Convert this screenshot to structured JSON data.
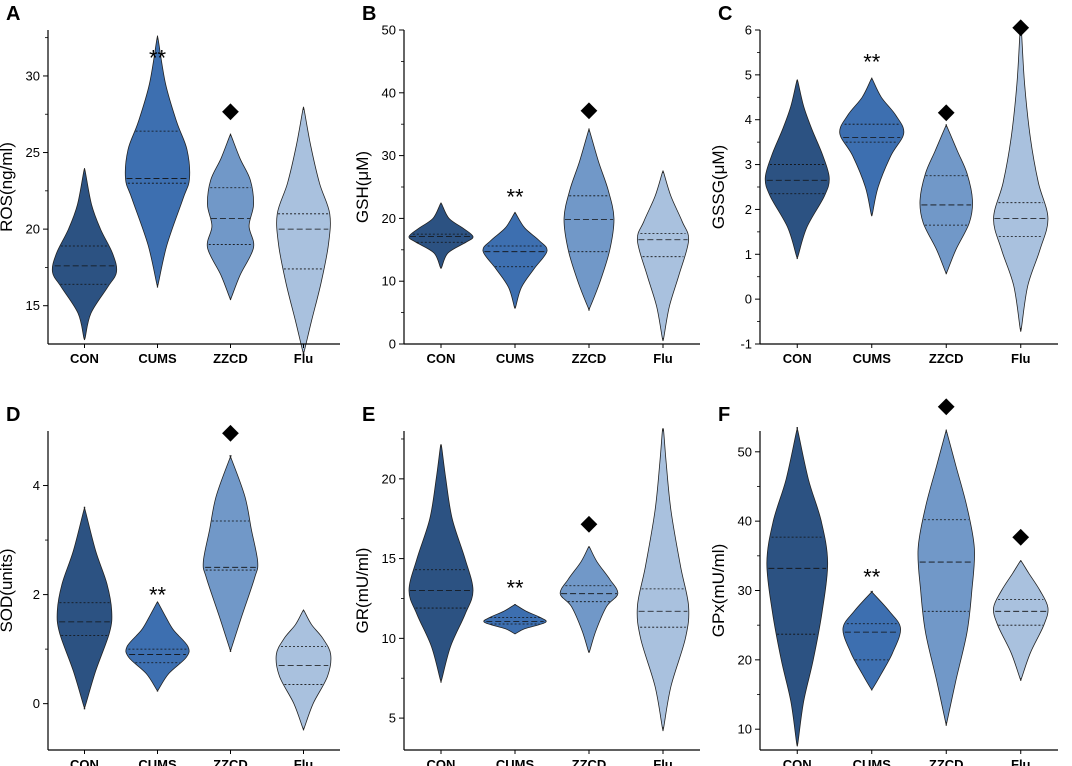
{
  "colors": {
    "groups": [
      "#2c5282",
      "#3d6fb0",
      "#7198c8",
      "#a9c1de"
    ],
    "stroke": "#222222"
  },
  "chart_data": [
    {
      "id": "A",
      "panel_label": "A",
      "type": "violin",
      "ylabel": "ROS(ng/ml)",
      "ylim": [
        12.5,
        33
      ],
      "yticks": [
        15,
        20,
        25,
        30
      ],
      "categories": [
        "CON",
        "CUMS",
        "ZZCD",
        "Flu"
      ],
      "violins": [
        {
          "min": 12.9,
          "max": 23.8,
          "q1": 16.4,
          "median": 17.6,
          "q3": 18.9,
          "profile": [
            [
              12.9,
              0.02
            ],
            [
              14.5,
              0.2
            ],
            [
              16.2,
              0.72
            ],
            [
              17.2,
              1.0
            ],
            [
              18.4,
              0.88
            ],
            [
              20.0,
              0.5
            ],
            [
              21.6,
              0.22
            ],
            [
              23.8,
              0.02
            ]
          ]
        },
        {
          "min": 16.4,
          "max": 32.4,
          "q1": 23.0,
          "median": 23.3,
          "q3": 26.4,
          "profile": [
            [
              16.4,
              0.02
            ],
            [
              19.0,
              0.3
            ],
            [
              22.0,
              0.8
            ],
            [
              23.3,
              1.0
            ],
            [
              25.2,
              0.92
            ],
            [
              27.0,
              0.6
            ],
            [
              29.5,
              0.25
            ],
            [
              32.4,
              0.02
            ]
          ]
        },
        {
          "min": 15.5,
          "max": 26.1,
          "q1": 19.0,
          "median": 20.7,
          "q3": 22.7,
          "profile": [
            [
              15.5,
              0.02
            ],
            [
              17.0,
              0.3
            ],
            [
              18.8,
              0.72
            ],
            [
              20.2,
              0.58
            ],
            [
              21.6,
              0.72
            ],
            [
              23.2,
              0.62
            ],
            [
              24.6,
              0.3
            ],
            [
              26.1,
              0.02
            ]
          ]
        },
        {
          "min": 12.0,
          "max": 27.8,
          "q1": 17.4,
          "median": 20.0,
          "q3": 21.0,
          "profile": [
            [
              12.0,
              0.02
            ],
            [
              14.0,
              0.25
            ],
            [
              16.5,
              0.55
            ],
            [
              19.0,
              0.78
            ],
            [
              21.0,
              0.82
            ],
            [
              23.0,
              0.5
            ],
            [
              25.5,
              0.22
            ],
            [
              27.8,
              0.02
            ]
          ]
        }
      ],
      "annotations": [
        {
          "group": "CUMS",
          "label": "**",
          "y": 31.2
        },
        {
          "group": "ZZCD",
          "label": "◆",
          "y": 27.8
        }
      ]
    },
    {
      "id": "B",
      "panel_label": "B",
      "type": "violin",
      "ylabel": "GSH(μM)",
      "ylim": [
        0,
        50
      ],
      "yticks": [
        0,
        10,
        20,
        30,
        40,
        50
      ],
      "categories": [
        "CON",
        "CUMS",
        "ZZCD",
        "Flu"
      ],
      "violins": [
        {
          "min": 12.2,
          "max": 22.3,
          "q1": 16.2,
          "median": 17.1,
          "q3": 17.5,
          "profile": [
            [
              12.2,
              0.02
            ],
            [
              14.5,
              0.22
            ],
            [
              16.2,
              0.78
            ],
            [
              17.1,
              1.0
            ],
            [
              18.4,
              0.7
            ],
            [
              20.0,
              0.25
            ],
            [
              22.3,
              0.02
            ]
          ]
        },
        {
          "min": 5.9,
          "max": 20.8,
          "q1": 12.3,
          "median": 14.7,
          "q3": 15.6,
          "profile": [
            [
              5.9,
              0.02
            ],
            [
              9.0,
              0.2
            ],
            [
              12.0,
              0.6
            ],
            [
              14.8,
              1.0
            ],
            [
              16.5,
              0.75
            ],
            [
              18.5,
              0.3
            ],
            [
              20.8,
              0.02
            ]
          ]
        },
        {
          "min": 5.7,
          "max": 33.9,
          "q1": 14.7,
          "median": 19.8,
          "q3": 23.6,
          "profile": [
            [
              5.7,
              0.02
            ],
            [
              10.0,
              0.35
            ],
            [
              15.0,
              0.65
            ],
            [
              20.0,
              0.78
            ],
            [
              24.5,
              0.6
            ],
            [
              29.0,
              0.3
            ],
            [
              33.9,
              0.02
            ]
          ]
        },
        {
          "min": 0.9,
          "max": 27.3,
          "q1": 13.9,
          "median": 16.6,
          "q3": 17.6,
          "profile": [
            [
              0.9,
              0.02
            ],
            [
              6.0,
              0.2
            ],
            [
              11.0,
              0.5
            ],
            [
              16.5,
              0.8
            ],
            [
              19.5,
              0.6
            ],
            [
              23.5,
              0.25
            ],
            [
              27.3,
              0.02
            ]
          ]
        }
      ],
      "annotations": [
        {
          "group": "CUMS",
          "label": "**",
          "y": 23.5
        },
        {
          "group": "ZZCD",
          "label": "◆",
          "y": 37.5
        }
      ]
    },
    {
      "id": "C",
      "panel_label": "C",
      "type": "violin",
      "ylabel": "GSSG(μM)",
      "ylim": [
        -1,
        6
      ],
      "yticks": [
        -1,
        0,
        1,
        2,
        3,
        4,
        5,
        6
      ],
      "categories": [
        "CON",
        "CUMS",
        "ZZCD",
        "Flu"
      ],
      "violins": [
        {
          "min": 0.95,
          "max": 4.85,
          "q1": 2.35,
          "median": 2.65,
          "q3": 3.0,
          "profile": [
            [
              0.95,
              0.02
            ],
            [
              1.6,
              0.3
            ],
            [
              2.3,
              0.85
            ],
            [
              2.7,
              1.0
            ],
            [
              3.2,
              0.8
            ],
            [
              3.8,
              0.45
            ],
            [
              4.3,
              0.2
            ],
            [
              4.85,
              0.02
            ]
          ]
        },
        {
          "min": 1.9,
          "max": 4.9,
          "q1": 3.5,
          "median": 3.6,
          "q3": 3.9,
          "profile": [
            [
              1.9,
              0.02
            ],
            [
              2.5,
              0.2
            ],
            [
              3.2,
              0.6
            ],
            [
              3.7,
              1.0
            ],
            [
              4.1,
              0.75
            ],
            [
              4.5,
              0.3
            ],
            [
              4.9,
              0.02
            ]
          ]
        },
        {
          "min": 0.6,
          "max": 3.85,
          "q1": 1.65,
          "median": 2.1,
          "q3": 2.75,
          "profile": [
            [
              0.6,
              0.02
            ],
            [
              1.1,
              0.3
            ],
            [
              1.7,
              0.72
            ],
            [
              2.2,
              0.82
            ],
            [
              2.8,
              0.65
            ],
            [
              3.3,
              0.35
            ],
            [
              3.85,
              0.02
            ]
          ]
        },
        {
          "min": -0.65,
          "max": 6.0,
          "q1": 1.4,
          "median": 1.8,
          "q3": 2.15,
          "profile": [
            [
              -0.65,
              0.02
            ],
            [
              0.3,
              0.22
            ],
            [
              1.1,
              0.6
            ],
            [
              1.8,
              0.85
            ],
            [
              2.6,
              0.55
            ],
            [
              3.6,
              0.3
            ],
            [
              4.8,
              0.12
            ],
            [
              6.0,
              0.02
            ]
          ]
        }
      ],
      "annotations": [
        {
          "group": "CUMS",
          "label": "**",
          "y": 5.3
        },
        {
          "group": "ZZCD",
          "label": "◆",
          "y": 4.2
        },
        {
          "group": "Flu",
          "label": "◆",
          "y": 6.1
        }
      ]
    },
    {
      "id": "D",
      "panel_label": "D",
      "type": "violin",
      "ylabel": "SOD(units)",
      "ylim": [
        -0.85,
        5
      ],
      "yticks": [
        0,
        2,
        4
      ],
      "categories": [
        "CON",
        "CUMS",
        "ZZCD",
        "Flu"
      ],
      "violins": [
        {
          "min": -0.05,
          "max": 3.55,
          "q1": 1.25,
          "median": 1.5,
          "q3": 1.85,
          "profile": [
            [
              -0.05,
              0.02
            ],
            [
              0.6,
              0.35
            ],
            [
              1.3,
              0.78
            ],
            [
              1.7,
              0.85
            ],
            [
              2.2,
              0.7
            ],
            [
              2.8,
              0.35
            ],
            [
              3.55,
              0.02
            ]
          ]
        },
        {
          "min": 0.25,
          "max": 1.85,
          "q1": 0.75,
          "median": 0.9,
          "q3": 1.0,
          "profile": [
            [
              0.25,
              0.02
            ],
            [
              0.55,
              0.35
            ],
            [
              0.85,
              0.9
            ],
            [
              1.05,
              0.95
            ],
            [
              1.35,
              0.5
            ],
            [
              1.6,
              0.25
            ],
            [
              1.85,
              0.02
            ]
          ]
        },
        {
          "min": 1.0,
          "max": 4.5,
          "q1": 2.45,
          "median": 2.5,
          "q3": 3.35,
          "profile": [
            [
              1.0,
              0.02
            ],
            [
              1.6,
              0.35
            ],
            [
              2.3,
              0.75
            ],
            [
              2.6,
              0.85
            ],
            [
              3.2,
              0.65
            ],
            [
              3.8,
              0.45
            ],
            [
              4.5,
              0.02
            ]
          ]
        },
        {
          "min": -0.45,
          "max": 1.7,
          "q1": 0.35,
          "median": 0.7,
          "q3": 1.05,
          "profile": [
            [
              -0.45,
              0.02
            ],
            [
              0.0,
              0.3
            ],
            [
              0.5,
              0.75
            ],
            [
              0.9,
              0.85
            ],
            [
              1.2,
              0.6
            ],
            [
              1.45,
              0.25
            ],
            [
              1.7,
              0.02
            ]
          ]
        }
      ],
      "annotations": [
        {
          "group": "CUMS",
          "label": "**",
          "y": 2.0
        },
        {
          "group": "ZZCD",
          "label": "◆",
          "y": 5.0
        }
      ]
    },
    {
      "id": "E",
      "panel_label": "E",
      "type": "violin",
      "ylabel": "GR(mU/ml)",
      "ylim": [
        3,
        23
      ],
      "yticks": [
        5,
        10,
        15,
        20
      ],
      "categories": [
        "CON",
        "CUMS",
        "ZZCD",
        "Flu"
      ],
      "violins": [
        {
          "min": 7.4,
          "max": 22.0,
          "q1": 11.9,
          "median": 13.0,
          "q3": 14.3,
          "profile": [
            [
              7.4,
              0.02
            ],
            [
              9.5,
              0.3
            ],
            [
              11.5,
              0.75
            ],
            [
              13.0,
              1.0
            ],
            [
              15.0,
              0.75
            ],
            [
              17.5,
              0.35
            ],
            [
              20.0,
              0.15
            ],
            [
              22.0,
              0.02
            ]
          ]
        },
        {
          "min": 10.3,
          "max": 12.1,
          "q1": 10.9,
          "median": 11.05,
          "q3": 11.3,
          "profile": [
            [
              10.3,
              0.02
            ],
            [
              10.6,
              0.3
            ],
            [
              11.0,
              0.95
            ],
            [
              11.3,
              0.8
            ],
            [
              11.7,
              0.35
            ],
            [
              12.1,
              0.02
            ]
          ]
        },
        {
          "min": 9.2,
          "max": 15.7,
          "q1": 12.3,
          "median": 12.8,
          "q3": 13.3,
          "profile": [
            [
              9.2,
              0.02
            ],
            [
              10.5,
              0.22
            ],
            [
              12.0,
              0.55
            ],
            [
              12.8,
              0.9
            ],
            [
              13.7,
              0.65
            ],
            [
              14.8,
              0.25
            ],
            [
              15.7,
              0.02
            ]
          ]
        },
        {
          "min": 4.4,
          "max": 23.0,
          "q1": 10.7,
          "median": 11.7,
          "q3": 13.1,
          "profile": [
            [
              4.4,
              0.02
            ],
            [
              7.0,
              0.25
            ],
            [
              10.0,
              0.7
            ],
            [
              12.0,
              0.8
            ],
            [
              14.5,
              0.55
            ],
            [
              18.0,
              0.25
            ],
            [
              21.0,
              0.1
            ],
            [
              23.0,
              0.02
            ]
          ]
        }
      ],
      "annotations": [
        {
          "group": "CUMS",
          "label": "**",
          "y": 13.2
        },
        {
          "group": "ZZCD",
          "label": "◆",
          "y": 17.3
        }
      ]
    },
    {
      "id": "F",
      "panel_label": "F",
      "type": "violin",
      "ylabel": "GPx(mU/ml)",
      "ylim": [
        7,
        53
      ],
      "yticks": [
        10,
        20,
        30,
        40,
        50
      ],
      "categories": [
        "CON",
        "CUMS",
        "ZZCD",
        "Flu"
      ],
      "violins": [
        {
          "min": 8.0,
          "max": 53.0,
          "q1": 23.7,
          "median": 33.2,
          "q3": 37.7,
          "profile": [
            [
              8.0,
              0.02
            ],
            [
              14.0,
              0.2
            ],
            [
              20.0,
              0.5
            ],
            [
              27.0,
              0.78
            ],
            [
              34.0,
              0.95
            ],
            [
              40.0,
              0.75
            ],
            [
              46.0,
              0.35
            ],
            [
              53.0,
              0.02
            ]
          ]
        },
        {
          "min": 15.8,
          "max": 29.7,
          "q1": 20.0,
          "median": 24.0,
          "q3": 25.2,
          "profile": [
            [
              15.8,
              0.02
            ],
            [
              18.0,
              0.3
            ],
            [
              21.0,
              0.65
            ],
            [
              24.5,
              0.9
            ],
            [
              27.0,
              0.55
            ],
            [
              29.7,
              0.02
            ]
          ]
        },
        {
          "min": 11.0,
          "max": 52.8,
          "q1": 27.0,
          "median": 34.1,
          "q3": 40.2,
          "profile": [
            [
              11.0,
              0.02
            ],
            [
              17.0,
              0.3
            ],
            [
              24.0,
              0.65
            ],
            [
              30.0,
              0.8
            ],
            [
              36.0,
              0.88
            ],
            [
              42.0,
              0.65
            ],
            [
              48.0,
              0.3
            ],
            [
              52.8,
              0.02
            ]
          ]
        },
        {
          "min": 17.3,
          "max": 34.2,
          "q1": 25.0,
          "median": 27.0,
          "q3": 28.7,
          "profile": [
            [
              17.3,
              0.02
            ],
            [
              21.0,
              0.3
            ],
            [
              25.0,
              0.72
            ],
            [
              27.5,
              0.85
            ],
            [
              30.0,
              0.6
            ],
            [
              32.5,
              0.25
            ],
            [
              34.2,
              0.02
            ]
          ]
        }
      ],
      "annotations": [
        {
          "group": "CUMS",
          "label": "**",
          "y": 32.0
        },
        {
          "group": "ZZCD",
          "label": "◆",
          "y": 56.8
        },
        {
          "group": "Flu",
          "label": "◆",
          "y": 38.0
        }
      ]
    }
  ]
}
